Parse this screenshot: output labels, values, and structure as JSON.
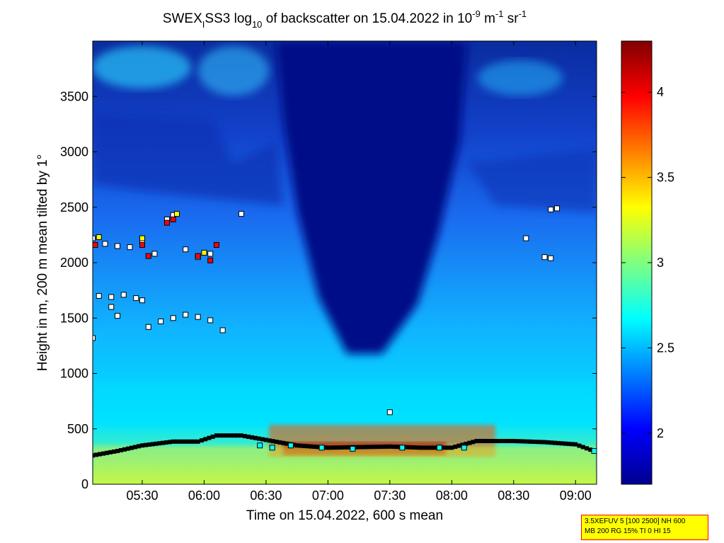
{
  "title_parts": {
    "prefix": "SWEX",
    "sub1": "I",
    "mid": "SS3 log",
    "sub2": "10",
    "after": " of backscatter on 15.04.2022 in 10",
    "sup1": "-9",
    "unit1": " m",
    "sup2": "-1",
    "unit2": " sr",
    "sup3": "-1"
  },
  "info_box": {
    "line1": "3.5XEFUV 5 [100 2500] NH 600",
    "line2": "MB 200 RG 15% TI 0 HI 15",
    "background": "#ffff00",
    "border": "#ff0000"
  },
  "chart_data": {
    "type": "heatmap",
    "xlabel": "Time on 15.04.2022, 600 s mean",
    "ylabel": "Height in m, 200 m mean tilted by 1°",
    "x_range_hours": [
      5.1,
      9.17
    ],
    "xlim": [
      "05:06",
      "09:10"
    ],
    "ylim": [
      0,
      4000
    ],
    "x_ticks": [
      {
        "h": 5.5,
        "label": "05:30"
      },
      {
        "h": 6.0,
        "label": "06:00"
      },
      {
        "h": 6.5,
        "label": "06:30"
      },
      {
        "h": 7.0,
        "label": "07:00"
      },
      {
        "h": 7.5,
        "label": "07:30"
      },
      {
        "h": 8.0,
        "label": "08:00"
      },
      {
        "h": 8.5,
        "label": "08:30"
      },
      {
        "h": 9.0,
        "label": "09:00"
      }
    ],
    "y_ticks": [
      {
        "v": 0,
        "label": "0"
      },
      {
        "v": 500,
        "label": "500"
      },
      {
        "v": 1000,
        "label": "1000"
      },
      {
        "v": 1500,
        "label": "1500"
      },
      {
        "v": 2000,
        "label": "2000"
      },
      {
        "v": 2500,
        "label": "2500"
      },
      {
        "v": 3000,
        "label": "3000"
      },
      {
        "v": 3500,
        "label": "3500"
      }
    ],
    "colorbar": {
      "range": [
        1.7,
        4.3
      ],
      "colormap": "jet",
      "ticks": [
        {
          "v": 2,
          "label": "2"
        },
        {
          "v": 2.5,
          "label": "2.5"
        },
        {
          "v": 3,
          "label": "3"
        },
        {
          "v": 3.5,
          "label": "3.5"
        },
        {
          "v": 4,
          "label": "4"
        }
      ]
    },
    "field_description_points": {
      "low_level_backscatter_log10": 3.0,
      "upper_clear_air_log10": 1.8,
      "aerosol_layer_top_m": 450
    },
    "mixing_layer_height": {
      "color": "#000000",
      "points": [
        [
          5.1,
          260
        ],
        [
          5.3,
          300
        ],
        [
          5.5,
          350
        ],
        [
          5.75,
          385
        ],
        [
          5.95,
          385
        ],
        [
          6.1,
          440
        ],
        [
          6.3,
          440
        ],
        [
          6.5,
          400
        ],
        [
          6.75,
          350
        ],
        [
          7.0,
          330
        ],
        [
          7.25,
          335
        ],
        [
          7.5,
          340
        ],
        [
          7.75,
          330
        ],
        [
          8.0,
          330
        ],
        [
          8.2,
          390
        ],
        [
          8.5,
          390
        ],
        [
          8.75,
          380
        ],
        [
          9.0,
          360
        ],
        [
          9.15,
          300
        ]
      ]
    },
    "detected_layers": [
      {
        "color": "#ffffff",
        "points": [
          [
            5.1,
            2220
          ],
          [
            5.2,
            2170
          ],
          [
            5.3,
            2150
          ],
          [
            5.4,
            2140
          ],
          [
            5.5,
            2200
          ],
          [
            5.6,
            2080
          ],
          [
            5.85,
            2120
          ],
          [
            5.95,
            2050
          ],
          [
            6.05,
            2080
          ]
        ]
      },
      {
        "color": "#ffffff",
        "points": [
          [
            5.15,
            1700
          ],
          [
            5.25,
            1690
          ],
          [
            5.35,
            1710
          ],
          [
            5.45,
            1680
          ],
          [
            5.5,
            1660
          ]
        ]
      },
      {
        "color": "#ffffff",
        "points": [
          [
            5.55,
            1420
          ],
          [
            5.65,
            1470
          ],
          [
            5.75,
            1500
          ],
          [
            5.85,
            1530
          ],
          [
            5.95,
            1510
          ],
          [
            6.05,
            1480
          ],
          [
            6.15,
            1390
          ]
        ]
      },
      {
        "color": "#ffffff",
        "points": [
          [
            5.7,
            2390
          ],
          [
            5.75,
            2430
          ],
          [
            6.3,
            2440
          ],
          [
            8.8,
            2480
          ],
          [
            8.85,
            2490
          ],
          [
            8.6,
            2220
          ],
          [
            8.75,
            2050
          ],
          [
            8.8,
            2040
          ]
        ]
      },
      {
        "color": "#ffffff",
        "points": [
          [
            5.1,
            1320
          ],
          [
            5.25,
            1600
          ],
          [
            5.3,
            1520
          ],
          [
            7.5,
            650
          ]
        ]
      }
    ],
    "colored_markers": [
      {
        "color": "#ff0000",
        "points": [
          [
            5.12,
            2160
          ],
          [
            5.5,
            2160
          ],
          [
            5.55,
            2060
          ],
          [
            5.7,
            2360
          ],
          [
            5.75,
            2390
          ],
          [
            5.95,
            2060
          ],
          [
            6.05,
            2020
          ],
          [
            6.1,
            2160
          ]
        ]
      },
      {
        "color": "#ffff00",
        "points": [
          [
            5.15,
            2230
          ],
          [
            5.5,
            2220
          ],
          [
            5.78,
            2440
          ],
          [
            6.0,
            2090
          ]
        ]
      },
      {
        "color": "#00ffff",
        "points": [
          [
            6.45,
            350
          ],
          [
            6.55,
            330
          ],
          [
            6.7,
            350
          ],
          [
            6.95,
            330
          ],
          [
            7.2,
            320
          ],
          [
            7.6,
            330
          ],
          [
            7.9,
            330
          ],
          [
            8.1,
            330
          ],
          [
            9.15,
            300
          ]
        ]
      }
    ]
  }
}
